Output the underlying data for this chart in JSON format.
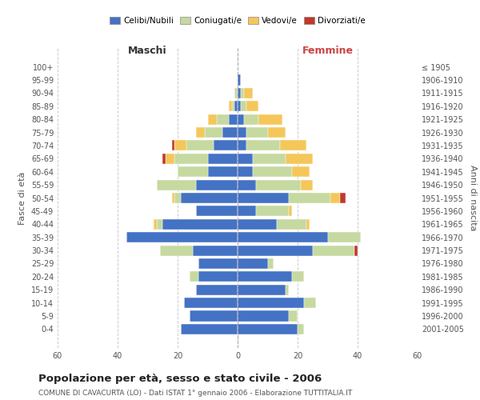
{
  "age_groups": [
    "100+",
    "95-99",
    "90-94",
    "85-89",
    "80-84",
    "75-79",
    "70-74",
    "65-69",
    "60-64",
    "55-59",
    "50-54",
    "45-49",
    "40-44",
    "35-39",
    "30-34",
    "25-29",
    "20-24",
    "15-19",
    "10-14",
    "5-9",
    "0-4"
  ],
  "birth_years": [
    "≤ 1905",
    "1906-1910",
    "1911-1915",
    "1916-1920",
    "1921-1925",
    "1926-1930",
    "1931-1935",
    "1936-1940",
    "1941-1945",
    "1946-1950",
    "1951-1955",
    "1956-1960",
    "1961-1965",
    "1966-1970",
    "1971-1975",
    "1976-1980",
    "1981-1985",
    "1986-1990",
    "1991-1995",
    "1996-2000",
    "2001-2005"
  ],
  "males": {
    "celibe": [
      0,
      0,
      0,
      1,
      3,
      5,
      8,
      10,
      10,
      14,
      19,
      14,
      25,
      37,
      15,
      13,
      13,
      14,
      18,
      16,
      19
    ],
    "coniugato": [
      0,
      0,
      1,
      1,
      4,
      6,
      9,
      11,
      10,
      13,
      2,
      0,
      2,
      0,
      11,
      0,
      3,
      0,
      0,
      0,
      0
    ],
    "vedovo": [
      0,
      0,
      0,
      1,
      3,
      3,
      4,
      3,
      0,
      0,
      1,
      0,
      1,
      0,
      0,
      0,
      0,
      0,
      0,
      0,
      0
    ],
    "divorziato": [
      0,
      0,
      0,
      0,
      0,
      0,
      1,
      1,
      0,
      0,
      0,
      0,
      0,
      0,
      0,
      0,
      0,
      0,
      0,
      0,
      0
    ]
  },
  "females": {
    "nubile": [
      0,
      1,
      1,
      1,
      2,
      3,
      3,
      5,
      5,
      6,
      17,
      6,
      13,
      30,
      25,
      10,
      18,
      16,
      22,
      17,
      20
    ],
    "coniugata": [
      0,
      0,
      1,
      2,
      5,
      7,
      11,
      11,
      13,
      15,
      14,
      11,
      10,
      11,
      14,
      2,
      4,
      1,
      4,
      3,
      2
    ],
    "vedova": [
      0,
      0,
      3,
      4,
      8,
      6,
      9,
      9,
      6,
      4,
      3,
      1,
      1,
      0,
      0,
      0,
      0,
      0,
      0,
      0,
      0
    ],
    "divorziata": [
      0,
      0,
      0,
      0,
      0,
      0,
      0,
      0,
      0,
      0,
      2,
      0,
      0,
      0,
      1,
      0,
      0,
      0,
      0,
      0,
      0
    ]
  },
  "colors": {
    "celibe": "#4472C4",
    "coniugato": "#C6D9A0",
    "vedovo": "#F5C75A",
    "divorziato": "#C0392B"
  },
  "title": "Popolazione per età, sesso e stato civile - 2006",
  "subtitle": "COMUNE DI CAVACURTA (LO) - Dati ISTAT 1° gennaio 2006 - Elaborazione TUTTITALIA.IT",
  "xlabel_left": "Maschi",
  "xlabel_right": "Femmine",
  "ylabel_left": "Fasce di età",
  "ylabel_right": "Anni di nascita",
  "xlim": 60,
  "legend_labels": [
    "Celibi/Nubili",
    "Coniugati/e",
    "Vedovi/e",
    "Divorziati/e"
  ],
  "background_color": "#ffffff",
  "bar_height": 0.8
}
